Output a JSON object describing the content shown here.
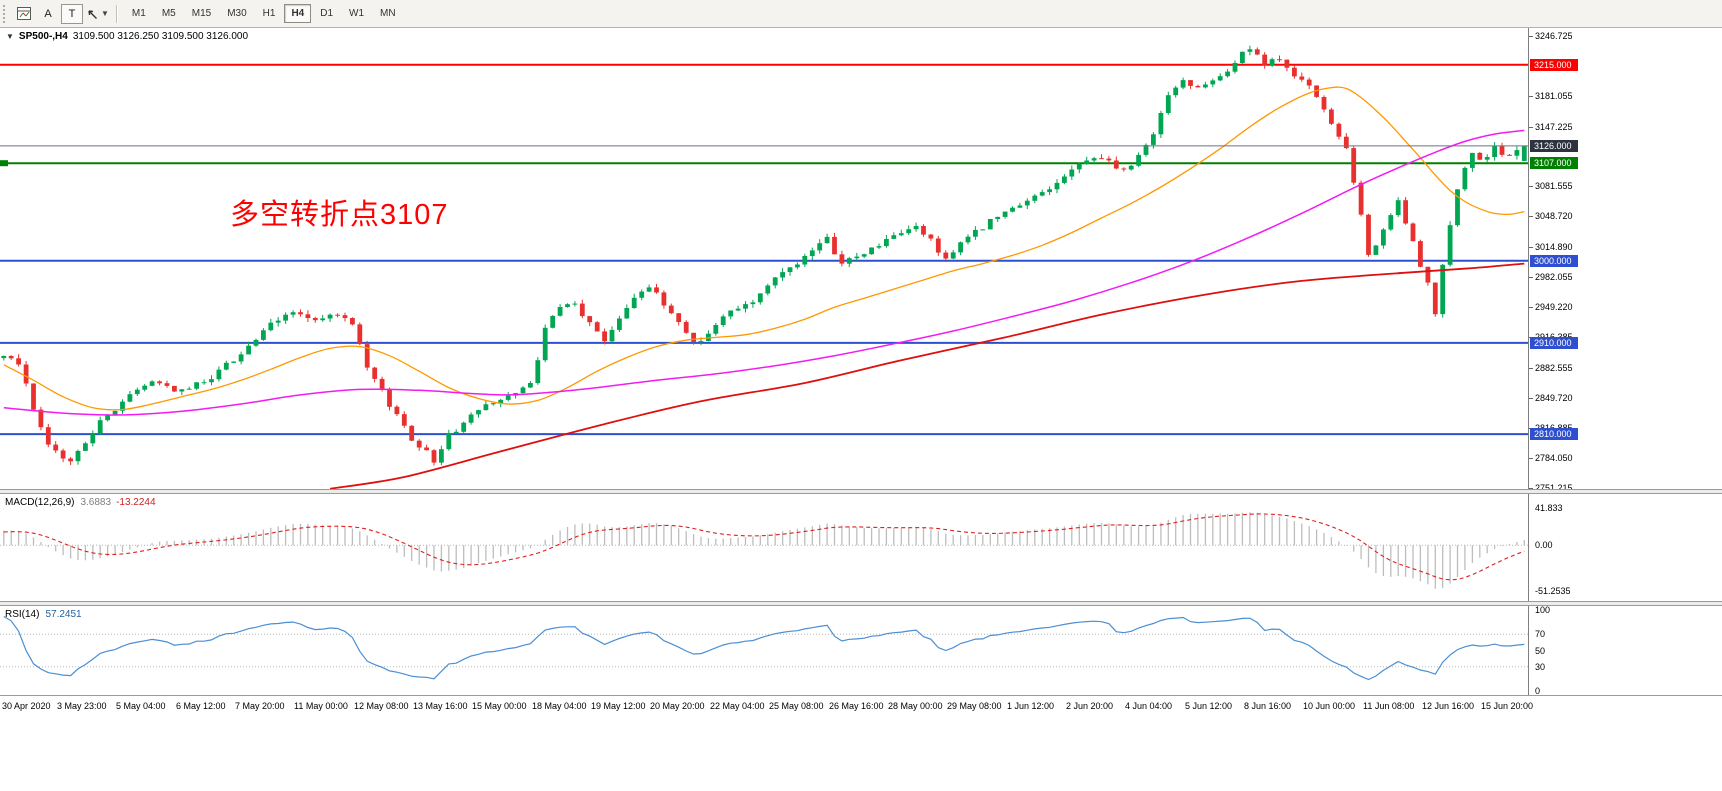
{
  "toolbar": {
    "button_a": "A",
    "button_t": "T",
    "timeframes": [
      "M1",
      "M5",
      "M15",
      "M30",
      "H1",
      "H4",
      "D1",
      "W1",
      "MN"
    ],
    "active_timeframe": "H4"
  },
  "chart": {
    "symbol_title": "SP500-,H4",
    "ohlc": "3109.500 3126.250 3109.500 3126.000",
    "annotation": "多空转折点3107",
    "up_color": "#00a651",
    "down_color": "#e8312f",
    "y_ticks": [
      "3246.725",
      "3181.055",
      "3147.225",
      "3081.555",
      "3048.720",
      "3014.890",
      "2982.055",
      "2949.220",
      "2916.385",
      "2882.555",
      "2849.720",
      "2816.885",
      "2784.050",
      "2751.215"
    ],
    "h_lines": [
      {
        "label": "3215.000",
        "price": 3215.0,
        "color": "#ff0000",
        "width": 2
      },
      {
        "label": "3107.000",
        "price": 3107.0,
        "color": "#008000",
        "width": 2,
        "handle": true
      },
      {
        "label": "3000.000",
        "price": 3000.0,
        "color": "#2e4fd0",
        "width": 2
      },
      {
        "label": "2910.000",
        "price": 2910.0,
        "color": "#2e4fd0",
        "width": 2
      },
      {
        "label": "2810.000",
        "price": 2810.0,
        "color": "#2e4fd0",
        "width": 2
      }
    ],
    "price_line": {
      "label": "3126.000",
      "price": 3126.0,
      "line_color": "#6a7585",
      "badge_color": "#2d3440"
    },
    "price_path": [
      [
        -60,
        2800
      ],
      [
        -45,
        2842
      ],
      [
        -30,
        2798
      ],
      [
        -15,
        2852
      ],
      [
        -5,
        2882
      ],
      [
        0,
        2896
      ],
      [
        2,
        2886
      ],
      [
        4,
        2840
      ],
      [
        6,
        2795
      ],
      [
        9,
        2779
      ],
      [
        12,
        2814
      ],
      [
        16,
        2846
      ],
      [
        20,
        2869
      ],
      [
        24,
        2856
      ],
      [
        28,
        2873
      ],
      [
        32,
        2899
      ],
      [
        36,
        2929
      ],
      [
        39,
        2945
      ],
      [
        42,
        2933
      ],
      [
        45,
        2941
      ],
      [
        47,
        2929
      ],
      [
        49,
        2882
      ],
      [
        52,
        2843
      ],
      [
        55,
        2806
      ],
      [
        58,
        2782
      ],
      [
        60,
        2808
      ],
      [
        63,
        2830
      ],
      [
        66,
        2847
      ],
      [
        69,
        2854
      ],
      [
        71,
        2864
      ],
      [
        73,
        2924
      ],
      [
        75,
        2949
      ],
      [
        77,
        2952
      ],
      [
        79,
        2931
      ],
      [
        81,
        2913
      ],
      [
        83,
        2939
      ],
      [
        85,
        2962
      ],
      [
        87,
        2971
      ],
      [
        89,
        2953
      ],
      [
        91,
        2933
      ],
      [
        93,
        2911
      ],
      [
        95,
        2919
      ],
      [
        97,
        2939
      ],
      [
        99,
        2951
      ],
      [
        101,
        2956
      ],
      [
        103,
        2973
      ],
      [
        105,
        2987
      ],
      [
        107,
        2999
      ],
      [
        109,
        3009
      ],
      [
        111,
        3023
      ],
      [
        113,
        2997
      ],
      [
        115,
        3005
      ],
      [
        117,
        3013
      ],
      [
        119,
        3023
      ],
      [
        121,
        3029
      ],
      [
        123,
        3039
      ],
      [
        125,
        3021
      ],
      [
        127,
        3003
      ],
      [
        129,
        3017
      ],
      [
        131,
        3033
      ],
      [
        133,
        3043
      ],
      [
        135,
        3053
      ],
      [
        137,
        3059
      ],
      [
        139,
        3071
      ],
      [
        141,
        3081
      ],
      [
        143,
        3093
      ],
      [
        145,
        3105
      ],
      [
        147,
        3115
      ],
      [
        149,
        3109
      ],
      [
        151,
        3097
      ],
      [
        153,
        3113
      ],
      [
        155,
        3141
      ],
      [
        157,
        3181
      ],
      [
        159,
        3197
      ],
      [
        161,
        3191
      ],
      [
        163,
        3201
      ],
      [
        165,
        3209
      ],
      [
        167,
        3227
      ],
      [
        168,
        3233
      ],
      [
        170,
        3213
      ],
      [
        172,
        3223
      ],
      [
        174,
        3205
      ],
      [
        176,
        3191
      ],
      [
        178,
        3163
      ],
      [
        180,
        3137
      ],
      [
        181,
        3121
      ],
      [
        183,
        3049
      ],
      [
        184,
        3003
      ],
      [
        186,
        3037
      ],
      [
        188,
        3063
      ],
      [
        190,
        3021
      ],
      [
        191,
        2991
      ],
      [
        192,
        2973
      ],
      [
        193,
        2941
      ],
      [
        194,
        2993
      ],
      [
        195,
        3041
      ],
      [
        196,
        3079
      ],
      [
        197,
        3105
      ],
      [
        198,
        3119
      ],
      [
        199,
        3109
      ],
      [
        201,
        3123
      ],
      [
        203,
        3113
      ],
      [
        204,
        3119
      ],
      [
        205,
        3126
      ]
    ],
    "ma_lines": [
      {
        "name": "ma-fast-orange",
        "color": "#ff9800",
        "width": 1.3,
        "points": [
          [
            0,
            2886
          ],
          [
            4,
            2869
          ],
          [
            8,
            2851
          ],
          [
            12,
            2839
          ],
          [
            16,
            2837
          ],
          [
            20,
            2843
          ],
          [
            24,
            2851
          ],
          [
            28,
            2859
          ],
          [
            32,
            2869
          ],
          [
            36,
            2881
          ],
          [
            40,
            2894
          ],
          [
            44,
            2904
          ],
          [
            48,
            2906
          ],
          [
            52,
            2896
          ],
          [
            56,
            2879
          ],
          [
            60,
            2861
          ],
          [
            64,
            2849
          ],
          [
            68,
            2843
          ],
          [
            72,
            2847
          ],
          [
            76,
            2861
          ],
          [
            80,
            2879
          ],
          [
            84,
            2894
          ],
          [
            88,
            2906
          ],
          [
            92,
            2913
          ],
          [
            96,
            2916
          ],
          [
            100,
            2919
          ],
          [
            104,
            2926
          ],
          [
            108,
            2936
          ],
          [
            112,
            2949
          ],
          [
            116,
            2959
          ],
          [
            120,
            2969
          ],
          [
            124,
            2979
          ],
          [
            128,
            2989
          ],
          [
            132,
            2997
          ],
          [
            136,
            3006
          ],
          [
            140,
            3017
          ],
          [
            144,
            3031
          ],
          [
            148,
            3047
          ],
          [
            152,
            3063
          ],
          [
            156,
            3081
          ],
          [
            160,
            3101
          ],
          [
            164,
            3123
          ],
          [
            168,
            3147
          ],
          [
            172,
            3168
          ],
          [
            176,
            3184
          ],
          [
            179,
            3190
          ],
          [
            181,
            3189
          ],
          [
            183,
            3179
          ],
          [
            185,
            3165
          ],
          [
            187,
            3149
          ],
          [
            189,
            3131
          ],
          [
            191,
            3113
          ],
          [
            193,
            3094
          ],
          [
            195,
            3077
          ],
          [
            197,
            3065
          ],
          [
            199,
            3057
          ],
          [
            201,
            3052
          ],
          [
            203,
            3051
          ],
          [
            205,
            3054
          ]
        ]
      },
      {
        "name": "ma-mid-magenta",
        "color": "#f21cf2",
        "width": 1.5,
        "points": [
          [
            0,
            2839
          ],
          [
            8,
            2833
          ],
          [
            16,
            2831
          ],
          [
            24,
            2835
          ],
          [
            32,
            2843
          ],
          [
            40,
            2853
          ],
          [
            48,
            2859
          ],
          [
            56,
            2858
          ],
          [
            62,
            2855
          ],
          [
            68,
            2853
          ],
          [
            74,
            2856
          ],
          [
            80,
            2861
          ],
          [
            88,
            2869
          ],
          [
            96,
            2876
          ],
          [
            104,
            2885
          ],
          [
            112,
            2896
          ],
          [
            120,
            2909
          ],
          [
            128,
            2923
          ],
          [
            136,
            2939
          ],
          [
            144,
            2956
          ],
          [
            152,
            2976
          ],
          [
            160,
            2999
          ],
          [
            168,
            3026
          ],
          [
            176,
            3056
          ],
          [
            182,
            3080
          ],
          [
            188,
            3102
          ],
          [
            193,
            3119
          ],
          [
            197,
            3131
          ],
          [
            201,
            3139
          ],
          [
            205,
            3143
          ]
        ]
      },
      {
        "name": "ma-slow-red",
        "color": "#dd0f0f",
        "width": 1.8,
        "points": [
          [
            44,
            2750
          ],
          [
            54,
            2763
          ],
          [
            67,
            2791
          ],
          [
            81,
            2821
          ],
          [
            94,
            2846
          ],
          [
            108,
            2866
          ],
          [
            121,
            2891
          ],
          [
            135,
            2916
          ],
          [
            148,
            2941
          ],
          [
            162,
            2963
          ],
          [
            175,
            2978
          ],
          [
            189,
            2987
          ],
          [
            198,
            2992
          ],
          [
            205,
            2997
          ]
        ]
      }
    ]
  },
  "macd": {
    "label": "MACD(12,26,9)",
    "value_main": "3.6883",
    "value_signal": "-13.2244",
    "axis": [
      "41.833",
      "0.00",
      "-51.2535"
    ],
    "hist_color": "#bdbdbd",
    "signal_color": "#e02020"
  },
  "rsi": {
    "label": "RSI(14)",
    "value": "57.2451",
    "axis": [
      "100",
      "70",
      "50",
      "30",
      "0"
    ],
    "levels": [
      70,
      30
    ],
    "line_color": "#4a8fd4"
  },
  "time_axis": {
    "bar_step": 8,
    "labels": [
      "30 Apr 2020",
      "3 May 23:00",
      "5 May 04:00",
      "6 May 12:00",
      "7 May 20:00",
      "11 May 00:00",
      "12 May 08:00",
      "13 May 16:00",
      "15 May 00:00",
      "18 May 04:00",
      "19 May 12:00",
      "20 May 20:00",
      "22 May 04:00",
      "25 May 08:00",
      "26 May 16:00",
      "28 May 00:00",
      "29 May 08:00",
      "1 Jun 12:00",
      "2 Jun 20:00",
      "4 Jun 04:00",
      "5 Jun 12:00",
      "8 Jun 16:00",
      "10 Jun 00:00",
      "11 Jun 08:00",
      "12 Jun 16:00",
      "15 Jun 20:00"
    ]
  }
}
